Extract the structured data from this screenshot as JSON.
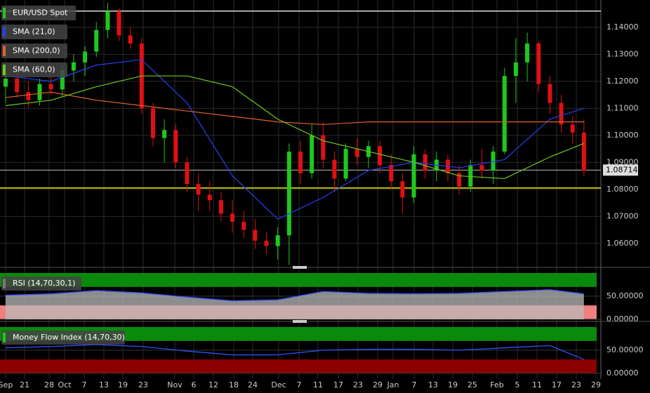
{
  "chart_data": {
    "type": "candlestick",
    "title": "EUR/USD Spot",
    "up_color": "#1ec81e",
    "down_color": "#e01010",
    "ylim": [
      1.0519,
      1.1501
    ],
    "yticks": [
      {
        "value": 1.14,
        "label": "1.14000"
      },
      {
        "value": 1.13,
        "label": "1.13000"
      },
      {
        "value": 1.12,
        "label": "1.12000"
      },
      {
        "value": 1.11,
        "label": "1.11000"
      },
      {
        "value": 1.1,
        "label": "1.10000"
      },
      {
        "value": 1.09,
        "label": "1.09000"
      },
      {
        "value": 1.08,
        "label": "1.08000"
      },
      {
        "value": 1.07,
        "label": "1.07000"
      },
      {
        "value": 1.06,
        "label": "1.06000"
      }
    ],
    "last_price": {
      "value": 1.08714,
      "label": "1.08714"
    },
    "reference_lines": [
      {
        "value": 1.146,
        "color": "#dddddd"
      },
      {
        "value": 1.0805,
        "color": "#f0f000"
      }
    ],
    "x_labels": [
      "Sep",
      "21",
      "28",
      "Oct",
      "7",
      "13",
      "19",
      "23",
      "Nov",
      "6",
      "12",
      "18",
      "24",
      "Dec",
      "7",
      "11",
      "17",
      "23",
      "29",
      "Jan",
      "7",
      "13",
      "19",
      "25",
      "Feb",
      "5",
      "11",
      "17",
      "23",
      "29"
    ],
    "ohlc": [
      [
        1.118,
        1.124,
        1.112,
        1.121
      ],
      [
        1.121,
        1.126,
        1.114,
        1.116
      ],
      [
        1.116,
        1.12,
        1.11,
        1.113
      ],
      [
        1.113,
        1.121,
        1.111,
        1.119
      ],
      [
        1.119,
        1.124,
        1.115,
        1.117
      ],
      [
        1.117,
        1.126,
        1.114,
        1.124
      ],
      [
        1.124,
        1.13,
        1.12,
        1.127
      ],
      [
        1.127,
        1.133,
        1.122,
        1.131
      ],
      [
        1.131,
        1.142,
        1.129,
        1.139
      ],
      [
        1.139,
        1.149,
        1.136,
        1.146
      ],
      [
        1.146,
        1.147,
        1.135,
        1.137
      ],
      [
        1.137,
        1.14,
        1.132,
        1.134
      ],
      [
        1.134,
        1.136,
        1.108,
        1.11
      ],
      [
        1.11,
        1.112,
        1.096,
        1.099
      ],
      [
        1.099,
        1.106,
        1.09,
        1.102
      ],
      [
        1.102,
        1.104,
        1.088,
        1.09
      ],
      [
        1.09,
        1.092,
        1.079,
        1.082
      ],
      [
        1.082,
        1.086,
        1.072,
        1.078
      ],
      [
        1.078,
        1.083,
        1.072,
        1.076
      ],
      [
        1.076,
        1.079,
        1.068,
        1.071
      ],
      [
        1.071,
        1.076,
        1.064,
        1.068
      ],
      [
        1.068,
        1.072,
        1.062,
        1.065
      ],
      [
        1.065,
        1.069,
        1.058,
        1.061
      ],
      [
        1.061,
        1.064,
        1.056,
        1.059
      ],
      [
        1.059,
        1.066,
        1.054,
        1.063
      ],
      [
        1.063,
        1.097,
        1.052,
        1.094
      ],
      [
        1.094,
        1.098,
        1.082,
        1.086
      ],
      [
        1.086,
        1.104,
        1.084,
        1.1
      ],
      [
        1.1,
        1.105,
        1.088,
        1.091
      ],
      [
        1.091,
        1.094,
        1.079,
        1.084
      ],
      [
        1.084,
        1.097,
        1.083,
        1.095
      ],
      [
        1.095,
        1.099,
        1.089,
        1.092
      ],
      [
        1.092,
        1.098,
        1.088,
        1.096
      ],
      [
        1.096,
        1.098,
        1.086,
        1.089
      ],
      [
        1.089,
        1.093,
        1.08,
        1.083
      ],
      [
        1.083,
        1.086,
        1.071,
        1.077
      ],
      [
        1.077,
        1.096,
        1.075,
        1.093
      ],
      [
        1.093,
        1.095,
        1.084,
        1.087
      ],
      [
        1.087,
        1.094,
        1.083,
        1.091
      ],
      [
        1.091,
        1.093,
        1.083,
        1.086
      ],
      [
        1.086,
        1.089,
        1.078,
        1.081
      ],
      [
        1.081,
        1.091,
        1.079,
        1.089
      ],
      [
        1.089,
        1.095,
        1.084,
        1.087
      ],
      [
        1.087,
        1.096,
        1.082,
        1.094
      ],
      [
        1.094,
        1.125,
        1.093,
        1.122
      ],
      [
        1.122,
        1.136,
        1.112,
        1.127
      ],
      [
        1.127,
        1.138,
        1.12,
        1.134
      ],
      [
        1.134,
        1.135,
        1.116,
        1.119
      ],
      [
        1.119,
        1.122,
        1.108,
        1.112
      ],
      [
        1.112,
        1.115,
        1.101,
        1.104
      ],
      [
        1.104,
        1.107,
        1.097,
        1.101
      ],
      [
        1.101,
        1.106,
        1.085,
        1.087
      ]
    ],
    "x": [
      0,
      4,
      8,
      12,
      16,
      20,
      24,
      28,
      32,
      36,
      40,
      44,
      48,
      51
    ],
    "series": [
      {
        "name": "SMA (21,0)",
        "color": "#2a3ff0",
        "values": [
          1.122,
          1.12,
          1.126,
          1.128,
          1.112,
          1.085,
          1.069,
          1.077,
          1.087,
          1.09,
          1.088,
          1.091,
          1.106,
          1.11
        ]
      },
      {
        "name": "SMA (200,0)",
        "color": "#e0602a",
        "values": [
          1.114,
          1.116,
          1.113,
          1.111,
          1.109,
          1.107,
          1.105,
          1.104,
          1.105,
          1.105,
          1.105,
          1.105,
          1.105,
          1.105
        ]
      },
      {
        "name": "SMA (60,0)",
        "color": "#6ec81e",
        "values": [
          1.111,
          1.113,
          1.118,
          1.122,
          1.122,
          1.118,
          1.106,
          1.098,
          1.094,
          1.09,
          1.085,
          1.084,
          1.092,
          1.097
        ]
      }
    ],
    "indicators": [
      {
        "name": "RSI (14,70,30,1)",
        "ylim": [
          0,
          100
        ],
        "yticks": [
          {
            "value": 50,
            "label": "50.00000"
          },
          {
            "value": 0,
            "label": "0.00000"
          }
        ],
        "overbought": 70,
        "oversold": 30,
        "upper_color": "#0a8a0a",
        "lower_color": "#f08080",
        "values": [
          52,
          55,
          62,
          57,
          48,
          40,
          42,
          60,
          56,
          55,
          56,
          60,
          64,
          55
        ]
      },
      {
        "name": "Money Flow Index (14,70,30)",
        "ylim": [
          0,
          100
        ],
        "yticks": [
          {
            "value": 50,
            "label": "50.00000"
          },
          {
            "value": 0,
            "label": "0.00000"
          }
        ],
        "overbought": 70,
        "oversold": 30,
        "upper_color": "#0a8a0a",
        "lower_color": "#8a0000",
        "values": [
          55,
          58,
          62,
          58,
          48,
          40,
          40,
          50,
          52,
          52,
          50,
          55,
          60,
          30
        ]
      }
    ]
  }
}
